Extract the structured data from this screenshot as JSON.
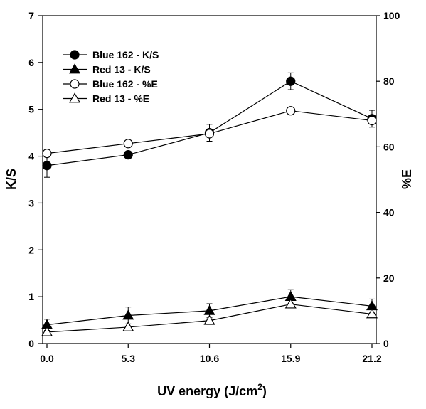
{
  "chart_data": {
    "type": "line",
    "title": "",
    "xlabel": "UV energy (J/cm",
    "xlabel_sup": "2",
    "xlabel_suffix": ")",
    "ylabel": "K/S",
    "y2label": "%E",
    "x": [
      0.0,
      5.3,
      10.6,
      15.9,
      21.2
    ],
    "x_tick_labels": [
      "0.0",
      "5.3",
      "10.6",
      "15.9",
      "21.2"
    ],
    "ylim": [
      0,
      7
    ],
    "y_ticks": [
      0,
      1,
      2,
      3,
      4,
      5,
      6,
      7
    ],
    "y2lim": [
      0,
      100
    ],
    "y2_ticks": [
      0,
      20,
      40,
      60,
      80,
      100
    ],
    "grid": false,
    "legend_position": "top-left",
    "series": [
      {
        "name": "Blue 162 - K/S",
        "axis": "left",
        "marker": "circle",
        "filled": true,
        "values": [
          3.8,
          4.03,
          4.5,
          5.6,
          4.8
        ],
        "errors": [
          0.25,
          0.06,
          0.18,
          0.18,
          0.18
        ]
      },
      {
        "name": "Red 13 - K/S",
        "axis": "left",
        "marker": "triangle",
        "filled": true,
        "values": [
          0.4,
          0.6,
          0.7,
          1.0,
          0.8
        ],
        "errors": [
          0.12,
          0.18,
          0.15,
          0.15,
          0.15
        ]
      },
      {
        "name": "Blue 162 - %E",
        "axis": "right",
        "marker": "circle",
        "filled": false,
        "values": [
          58,
          61,
          64,
          71,
          68
        ],
        "errors": [
          0,
          0,
          0,
          0,
          0
        ]
      },
      {
        "name": "Red 13 - %E",
        "axis": "right",
        "marker": "triangle",
        "filled": false,
        "values": [
          3.5,
          5,
          7,
          12,
          9
        ],
        "errors": [
          0,
          0,
          0,
          0,
          0
        ]
      }
    ]
  }
}
